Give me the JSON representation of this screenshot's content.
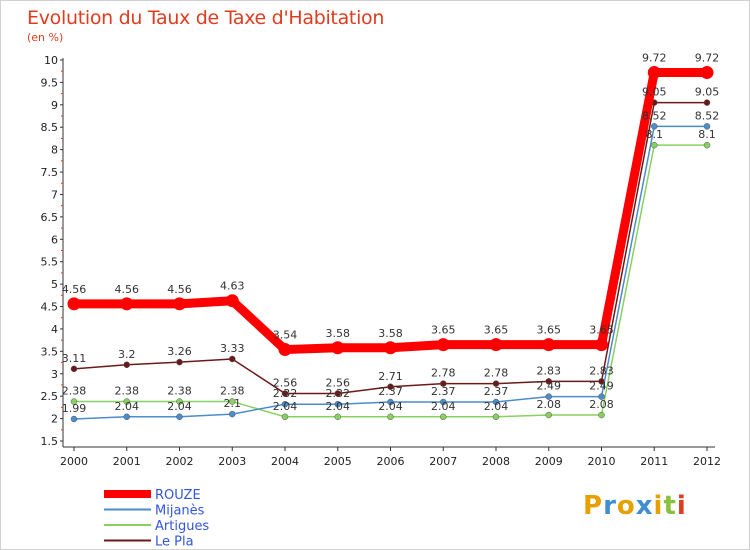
{
  "header": {
    "title": "Evolution du Taux de Taxe d'Habitation",
    "unit": "(en %)"
  },
  "logo": {
    "letters": [
      "P",
      "r",
      "o",
      "x",
      "i",
      "t",
      "i"
    ],
    "colors": [
      "#e8a000",
      "#3f8fd0",
      "#e8a000",
      "#3f8fd0",
      "#e8a000",
      "#88c040",
      "#e03c1f"
    ]
  },
  "chart_data": {
    "type": "line",
    "x": [
      2000,
      2001,
      2002,
      2003,
      2004,
      2005,
      2006,
      2007,
      2008,
      2009,
      2010,
      2011,
      2012
    ],
    "x_tick_labels": [
      "2000",
      "2001",
      "2002",
      "2003",
      "2004",
      "2005",
      "2006",
      "2007",
      "2008",
      "2009",
      "2010",
      "2011",
      "2012"
    ],
    "ylim": [
      1.5,
      10
    ],
    "y_ticks": [
      1.5,
      2,
      2.5,
      3,
      3.5,
      4,
      4.5,
      5,
      5.5,
      6,
      6.5,
      7,
      7.5,
      8,
      8.5,
      9,
      9.5,
      10
    ],
    "y_tick_labels": [
      "1.5",
      "2",
      "2.5",
      "3",
      "3.5",
      "4",
      "4.5",
      "5",
      "5.5",
      "6",
      "6.5",
      "7",
      "7.5",
      "8",
      "8.5",
      "9",
      "9.5",
      "10"
    ],
    "grid": false,
    "legend_position": "bottom-left",
    "series": [
      {
        "name": "Le Pla",
        "color": "#6b1a1a",
        "values": [
          3.11,
          3.2,
          3.26,
          3.33,
          2.56,
          2.56,
          2.71,
          2.78,
          2.78,
          2.83,
          2.83,
          9.05,
          9.05
        ],
        "labels": [
          "3.11",
          "3.2",
          "3.26",
          "3.33",
          "2.56",
          "2.56",
          "2.71",
          "2.78",
          "2.78",
          "2.83",
          "2.83",
          "9.05",
          "9.05"
        ]
      },
      {
        "name": "Artigues",
        "color": "#88d060",
        "values": [
          2.38,
          2.38,
          2.38,
          2.38,
          2.04,
          2.04,
          2.04,
          2.04,
          2.04,
          2.08,
          2.08,
          8.1,
          8.1
        ],
        "labels": [
          "2.38",
          "2.38",
          "2.38",
          "2.38",
          "2.04",
          "2.04",
          "2.04",
          "2.04",
          "2.04",
          "2.08",
          "2.08",
          "8.1",
          "8.1"
        ]
      },
      {
        "name": "Mijanès",
        "color": "#4a8ccc",
        "values": [
          1.99,
          2.04,
          2.04,
          2.1,
          2.32,
          2.32,
          2.37,
          2.37,
          2.37,
          2.49,
          2.49,
          8.52,
          8.52
        ],
        "labels": [
          "1.99",
          "2.04",
          "2.04",
          "2.1",
          "2.32",
          "2.32",
          "2.37",
          "2.37",
          "2.37",
          "2.49",
          "2.49",
          "8.52",
          "8.52"
        ]
      },
      {
        "name": "ROUZE",
        "color": "#ff0000",
        "values": [
          4.56,
          4.56,
          4.56,
          4.63,
          3.54,
          3.58,
          3.58,
          3.65,
          3.65,
          3.65,
          3.65,
          9.72,
          9.72
        ],
        "labels": [
          "4.56",
          "4.56",
          "4.56",
          "4.63",
          "3.54",
          "3.58",
          "3.58",
          "3.65",
          "3.65",
          "3.65",
          "3.65",
          "9.72",
          "9.72"
        ]
      }
    ],
    "legend": [
      {
        "name": "ROUZE",
        "color": "#ff0000",
        "text_color": "#3355dd"
      },
      {
        "name": "Mijanès",
        "color": "#4a8ccc",
        "text_color": "#3355dd"
      },
      {
        "name": "Artigues",
        "color": "#88d060",
        "text_color": "#3355dd"
      },
      {
        "name": "Le Pla",
        "color": "#6b1a1a",
        "text_color": "#3355dd"
      }
    ]
  }
}
